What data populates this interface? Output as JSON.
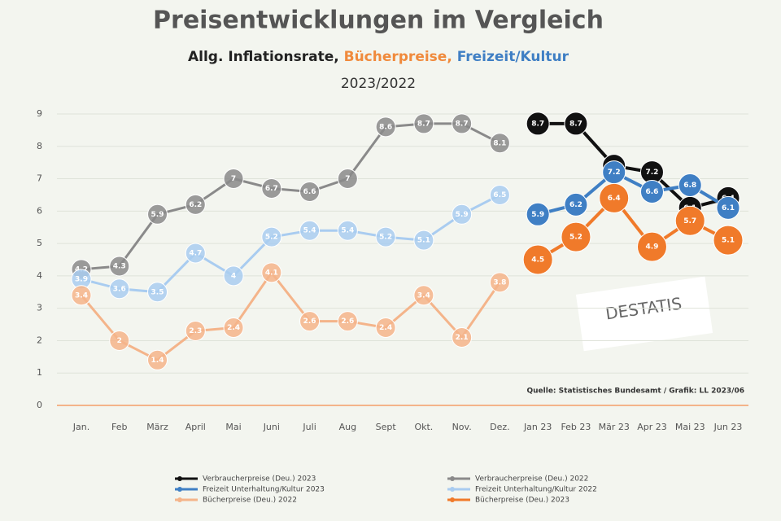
{
  "chart_data": {
    "type": "line",
    "title": "Preisentwicklungen im  Vergleich",
    "subtitle_parts": [
      {
        "text": "Allg. Inflationsrate,",
        "color": "#222222"
      },
      {
        "text": "Bücherpreise,",
        "color": "#f08a3c"
      },
      {
        "text": "Freizeit/Kultur",
        "color": "#3f7fc4"
      }
    ],
    "period": "2023/2022",
    "categories": [
      "Jan.",
      "Feb",
      "März",
      "April",
      "Mai",
      "Juni",
      "Juli",
      "Aug",
      "Sept",
      "Okt.",
      "Nov.",
      "Dez.",
      "Jan 23",
      "Feb 23",
      "Mär 23",
      "Apr 23",
      "Mai 23",
      "Jun 23"
    ],
    "ylim": [
      0,
      9
    ],
    "yticks": [
      0,
      1,
      2,
      3,
      4,
      5,
      6,
      7,
      8,
      9
    ],
    "grid": true,
    "series": [
      {
        "name": "Verbraucherpreise (Deu.) 2023",
        "color": "#111111",
        "values": [
          null,
          null,
          null,
          null,
          null,
          null,
          null,
          null,
          null,
          null,
          null,
          null,
          8.7,
          8.7,
          7.4,
          7.2,
          6.1,
          6.4
        ]
      },
      {
        "name": "Verbraucherpreise (Deu.) 2022",
        "color": "#8a8a8a",
        "values": [
          4.2,
          4.3,
          5.9,
          6.2,
          7.0,
          6.7,
          6.6,
          7.0,
          8.6,
          8.7,
          8.7,
          8.1,
          null,
          null,
          null,
          null,
          null,
          null
        ]
      },
      {
        "name": "Freizeit Unterhaltung/Kultur 2023",
        "color": "#3f7fc4",
        "values": [
          null,
          null,
          null,
          null,
          null,
          null,
          null,
          null,
          null,
          null,
          null,
          null,
          5.9,
          6.2,
          7.2,
          6.6,
          6.8,
          6.1
        ]
      },
      {
        "name": "Freizeit Unterhaltung/Kultur 2022",
        "color": "#a9ccf0",
        "values": [
          3.9,
          3.6,
          3.5,
          4.7,
          4.0,
          5.2,
          5.4,
          5.4,
          5.2,
          5.1,
          5.9,
          6.5,
          null,
          null,
          null,
          null,
          null,
          null
        ]
      },
      {
        "name": "Bücherpreise (Deu.) 2022",
        "color": "#f4b48a",
        "values": [
          3.4,
          2.0,
          1.4,
          2.3,
          2.4,
          4.1,
          2.6,
          2.6,
          2.4,
          3.4,
          2.1,
          3.8,
          null,
          null,
          null,
          null,
          null,
          null
        ]
      },
      {
        "name": "Bücherpreise (Deu.) 2023",
        "color": "#f07a2a",
        "values": [
          null,
          null,
          null,
          null,
          null,
          null,
          null,
          null,
          null,
          null,
          null,
          null,
          4.5,
          5.2,
          6.4,
          4.9,
          5.7,
          5.1
        ]
      }
    ],
    "source": "Quelle: Statistisches Bundesamt / Grafik: LL 2023/06",
    "logo": "DESTATIS"
  }
}
